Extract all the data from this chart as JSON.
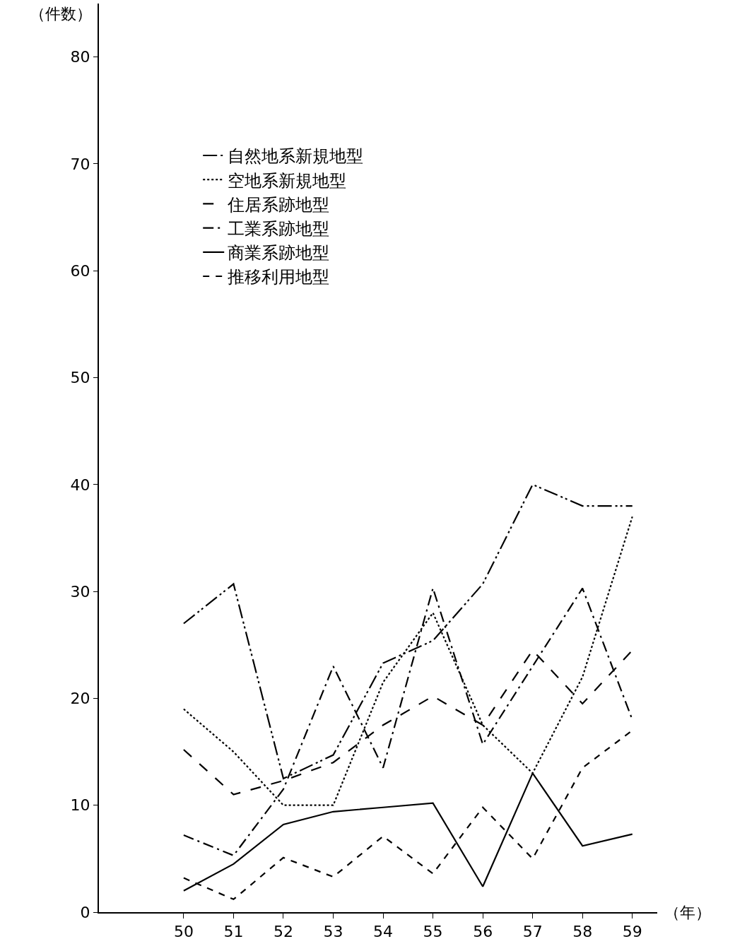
{
  "chart_data": {
    "type": "line",
    "xlabel": "（年）",
    "ylabel": "（件数）",
    "x": [
      50,
      51,
      52,
      53,
      54,
      55,
      56,
      57,
      58,
      59
    ],
    "xlim": [
      48.3,
      59.5
    ],
    "xticks": [
      50,
      51,
      52,
      53,
      54,
      55,
      56,
      57,
      58,
      59
    ],
    "ylim": [
      0,
      85
    ],
    "yticks": [
      0,
      10,
      20,
      30,
      40,
      50,
      60,
      70,
      80
    ],
    "grid": false,
    "legend": "top",
    "marker": "none",
    "series": [
      {
        "name": "自然地系新規地型",
        "color": "#000000",
        "line_style": "dashdotdot",
        "values": [
          27,
          30.7,
          12.5,
          14.7,
          23.3,
          25.4,
          30.7,
          40,
          38,
          38
        ]
      },
      {
        "name": "空地系新規地型",
        "color": "#000000",
        "line_style": "dotted",
        "values": [
          19,
          15,
          10,
          10,
          21.5,
          28,
          17.5,
          13,
          22,
          37
        ]
      },
      {
        "name": "住居系跡地型",
        "color": "#000000",
        "line_style": "longdash",
        "values": [
          15.2,
          11,
          12.3,
          14,
          17.5,
          20.2,
          17.5,
          24.5,
          19.5,
          24.5
        ]
      },
      {
        "name": "工業系跡地型",
        "color": "#000000",
        "line_style": "dashdot",
        "values": [
          7.2,
          5.3,
          11.5,
          23,
          13.5,
          30.3,
          15.7,
          23,
          30.3,
          18
        ]
      },
      {
        "name": "商業系跡地型",
        "color": "#000000",
        "line_style": "solid",
        "values": [
          2,
          4.5,
          8.2,
          9.4,
          9.8,
          10.2,
          2.4,
          13,
          6.2,
          7.3
        ]
      },
      {
        "name": "推移利用地型",
        "color": "#000000",
        "line_style": "dashed",
        "values": [
          3.2,
          1.2,
          5.1,
          3.3,
          7.1,
          3.6,
          9.8,
          5,
          13.5,
          17
        ]
      }
    ]
  }
}
